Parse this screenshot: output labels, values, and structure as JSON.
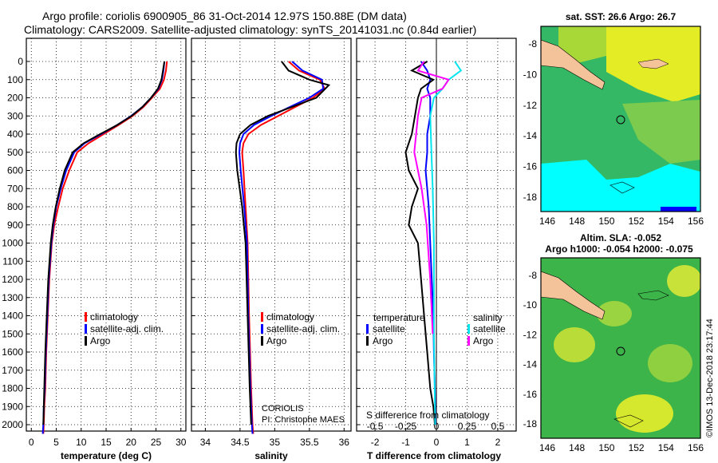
{
  "title_line1": "Argo profile: coriolis 6900905_86 31-Oct-2014 12.97S 150.88E (DM data)",
  "title_line2": "Climatology: CARS2009. Satellite-adjusted climatology: synTS_20141031.nc (0.84d earlier)",
  "colors": {
    "climatology": "#ff0000",
    "satellite": "#0000ff",
    "argo": "#000000",
    "sat_salinity": "#00e5ee",
    "argo_salinity": "#ff00ff",
    "land": "#f5c39a",
    "sst_green": "#35b865",
    "sst_yellow": "#e4ec26",
    "sst_cyan": "#00ffff"
  },
  "panels": {
    "temperature": {
      "xlabel": "temperature (deg C)",
      "xticks": [
        "0",
        "5",
        "10",
        "15",
        "20",
        "25",
        "30"
      ],
      "legend": [
        "climatology",
        "satellite-adj. clim.",
        "Argo"
      ]
    },
    "salinity": {
      "xlabel": "salinity",
      "xticks": [
        "34",
        "34.5",
        "35",
        "35.5",
        "36"
      ],
      "legend": [
        "climatology",
        "satellite-adj. clim.",
        "Argo"
      ],
      "credit1": "CORIOLIS",
      "credit2": "PI: Christophe MAES"
    },
    "difference": {
      "xlabel": "T difference from climatology",
      "xticks": [
        "-2",
        "-1",
        "0",
        "1",
        "2"
      ],
      "s_title": "S difference from climatology",
      "s_ticks": [
        "-0.5",
        "-0.25",
        "0",
        "0.25",
        "0.5"
      ],
      "legend_t_head": "temperature",
      "legend_s_head": "salinity",
      "legend_t": [
        "satellite",
        "Argo"
      ],
      "legend_s": [
        "satellite",
        "Argo"
      ]
    }
  },
  "depth_ticks": [
    "0",
    "100",
    "200",
    "300",
    "400",
    "500",
    "600",
    "700",
    "800",
    "900",
    "1000",
    "1100",
    "1200",
    "1300",
    "1400",
    "1500",
    "1600",
    "1700",
    "1800",
    "1900",
    "2000"
  ],
  "maps": {
    "sst": {
      "title": "sat. SST: 26.6 Argo: 26.7",
      "yticks": [
        "-8",
        "-10",
        "-12",
        "-14",
        "-16",
        "-18"
      ],
      "xticks": [
        "146",
        "148",
        "150",
        "152",
        "154",
        "156"
      ]
    },
    "sla": {
      "title1": "Altim. SLA: -0.052",
      "title2": "Argo h1000: -0.054 h2000: -0.075",
      "yticks": [
        "-8",
        "-10",
        "-12",
        "-14",
        "-16",
        "-18"
      ],
      "xticks": [
        "146",
        "148",
        "150",
        "152",
        "154",
        "156"
      ]
    }
  },
  "watermark": "©IMOS 13-Dec-2018 23:17:44",
  "chart_data": [
    {
      "type": "line",
      "name": "temperature",
      "xlim": [
        -1,
        31
      ],
      "ylim": [
        2050,
        0
      ],
      "series": [
        {
          "name": "climatology",
          "x": [
            27.2,
            27.0,
            26.6,
            25.8,
            24.2,
            22.5,
            20.3,
            17.5,
            14.5,
            11.5,
            9.2,
            7.6,
            6.3,
            5.4,
            4.6,
            4.1,
            3.6,
            3.3,
            3.0,
            2.8,
            2.6,
            2.5,
            2.4
          ],
          "y": [
            0,
            50,
            100,
            150,
            200,
            250,
            300,
            350,
            400,
            450,
            500,
            600,
            700,
            800,
            900,
            1000,
            1200,
            1400,
            1600,
            1800,
            1900,
            2000,
            2050
          ]
        },
        {
          "name": "satellite-adj. clim.",
          "x": [
            26.7,
            26.5,
            26.2,
            25.5,
            24.0,
            22.3,
            20.0,
            17.2,
            14.0,
            10.7,
            8.6,
            7.0,
            5.9,
            5.0,
            4.4,
            4.0,
            3.5,
            3.2,
            2.9,
            2.7,
            2.5,
            2.4,
            2.3
          ],
          "y": [
            0,
            50,
            100,
            150,
            200,
            250,
            300,
            350,
            400,
            450,
            500,
            600,
            700,
            800,
            900,
            1000,
            1200,
            1400,
            1600,
            1800,
            1900,
            2000,
            2050
          ]
        },
        {
          "name": "Argo",
          "x": [
            26.7,
            26.4,
            26.1,
            25.4,
            24.0,
            22.3,
            20.1,
            17.2,
            13.8,
            10.5,
            8.3,
            6.7,
            5.7,
            4.9,
            4.3,
            3.9,
            3.4,
            3.1,
            2.8,
            2.6,
            2.5,
            2.4
          ],
          "y": [
            0,
            50,
            100,
            150,
            200,
            250,
            300,
            350,
            400,
            450,
            500,
            600,
            700,
            800,
            900,
            1000,
            1200,
            1400,
            1600,
            1800,
            1900,
            2000
          ]
        }
      ]
    },
    {
      "type": "line",
      "name": "salinity",
      "xlim": [
        33.8,
        36.1
      ],
      "ylim": [
        2050,
        0
      ],
      "series": [
        {
          "name": "climatology",
          "x": [
            35.2,
            35.35,
            35.65,
            35.72,
            35.55,
            35.3,
            35.05,
            34.8,
            34.62,
            34.55,
            34.53,
            34.55,
            34.58,
            34.61,
            34.63,
            34.66,
            34.68,
            34.69
          ],
          "y": [
            0,
            50,
            100,
            150,
            200,
            250,
            300,
            350,
            400,
            450,
            500,
            600,
            800,
            1000,
            1400,
            1800,
            2000,
            2050
          ]
        },
        {
          "name": "satellite-adj. clim.",
          "x": [
            35.25,
            35.4,
            35.68,
            35.7,
            35.5,
            35.22,
            34.95,
            34.7,
            34.55,
            34.5,
            34.49,
            34.51,
            34.56,
            34.6,
            34.62,
            34.65,
            34.67,
            34.68
          ],
          "y": [
            0,
            50,
            100,
            150,
            200,
            250,
            300,
            350,
            400,
            450,
            500,
            600,
            800,
            1000,
            1400,
            1800,
            2000,
            2050
          ]
        },
        {
          "name": "Argo",
          "x": [
            35.1,
            35.2,
            35.5,
            35.78,
            35.6,
            35.25,
            34.9,
            34.65,
            34.5,
            34.45,
            34.44,
            34.46,
            34.53,
            34.58,
            34.61,
            34.64,
            34.66
          ],
          "y": [
            0,
            50,
            100,
            130,
            200,
            250,
            300,
            350,
            400,
            450,
            500,
            600,
            800,
            1000,
            1400,
            1800,
            2000
          ]
        }
      ]
    },
    {
      "type": "line",
      "name": "difference",
      "xlim": [
        -2.6,
        2.6
      ],
      "ylim": [
        2050,
        0
      ],
      "s_xlim": [
        -0.65,
        0.65
      ],
      "series": [
        {
          "name": "satellite",
          "quantity": "temperature",
          "x": [
            -0.5,
            -0.3,
            -0.2,
            -0.3,
            -0.2,
            -0.2,
            -0.3,
            -0.3,
            -0.35,
            -0.3,
            -0.25,
            -0.2,
            -0.15,
            -0.1,
            -0.08,
            -0.05,
            -0.03
          ],
          "y": [
            0,
            50,
            100,
            150,
            200,
            300,
            400,
            500,
            600,
            700,
            800,
            1000,
            1200,
            1400,
            1600,
            1800,
            2000
          ]
        },
        {
          "name": "Argo",
          "quantity": "temperature",
          "x": [
            -0.3,
            -0.8,
            -0.1,
            -0.5,
            -0.6,
            -0.7,
            -0.8,
            -1.0,
            -0.9,
            -0.6,
            -0.8,
            -0.9,
            -0.6,
            -0.5,
            -0.4,
            -0.3,
            -0.2,
            -0.1,
            -0.05
          ],
          "y": [
            0,
            50,
            100,
            150,
            200,
            300,
            400,
            500,
            600,
            700,
            800,
            900,
            1000,
            1200,
            1400,
            1600,
            1800,
            1900,
            2000
          ]
        },
        {
          "name": "satellite",
          "quantity": "salinity",
          "x": [
            0.15,
            0.2,
            0.1,
            0.05,
            -0.02,
            -0.05,
            -0.04,
            -0.03,
            -0.02,
            -0.02,
            -0.01
          ],
          "y": [
            0,
            50,
            100,
            150,
            200,
            300,
            500,
            700,
            1000,
            1500,
            2000
          ]
        },
        {
          "name": "Argo",
          "quantity": "salinity",
          "x": [
            -0.1,
            -0.15,
            0.1,
            0.05,
            -0.12,
            -0.15,
            -0.18,
            -0.12,
            -0.08,
            -0.05,
            -0.03
          ],
          "y": [
            0,
            50,
            100,
            150,
            200,
            300,
            500,
            700,
            900,
            1200,
            1500
          ]
        }
      ]
    }
  ]
}
